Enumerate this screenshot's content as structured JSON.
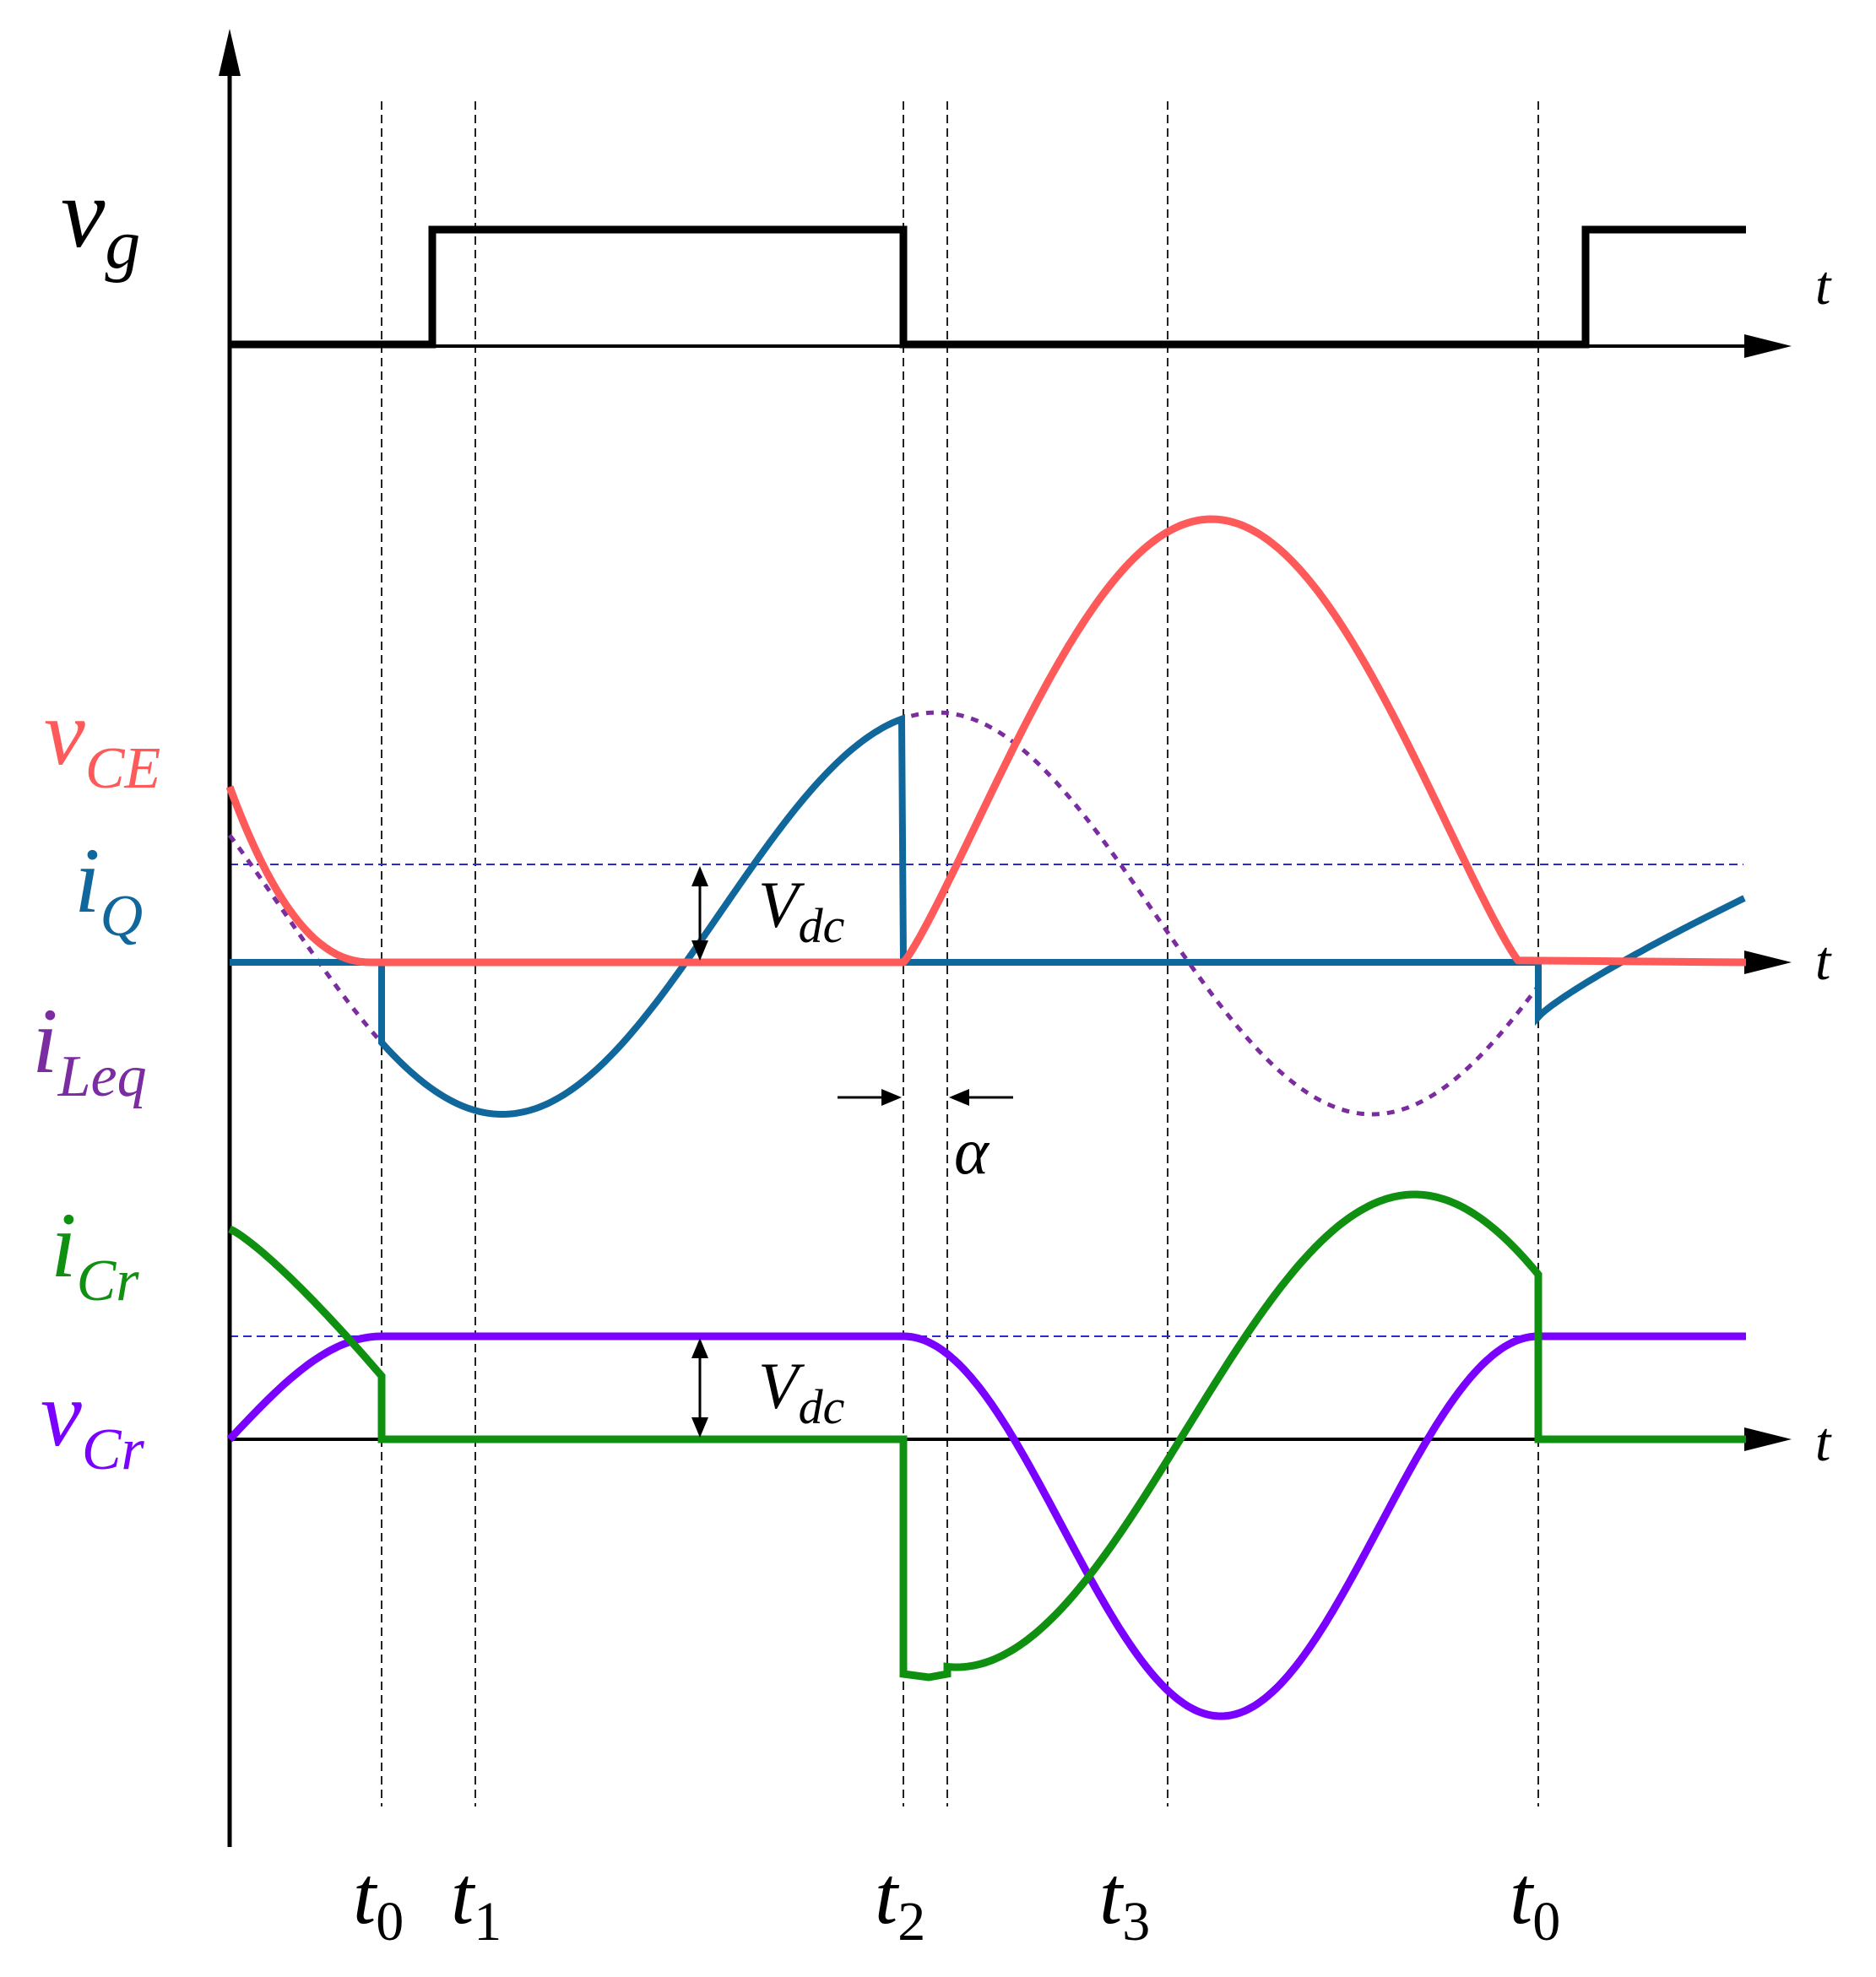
{
  "figure": {
    "colors": {
      "axis": "#000000",
      "vg": "#000000",
      "vCE": "#ff5a5a",
      "iQ": "#10679c",
      "iLeq": "#7a2ca0",
      "iCr": "#109010",
      "vCr": "#7a00ff",
      "vdc_ref": "#2a2ad0",
      "guides": "#222222"
    },
    "panels": {
      "gate": {
        "time_label": "t"
      },
      "switch": {
        "time_label": "t"
      },
      "resonant": {
        "time_label": "t"
      }
    },
    "signals": {
      "vg": {
        "main": "v",
        "sub": "g"
      },
      "vCE": {
        "main": "v",
        "sub": "CE"
      },
      "iQ": {
        "main": "i",
        "sub": "Q"
      },
      "iLeq": {
        "main": "i",
        "sub": "Leq"
      },
      "iCr": {
        "main": "i",
        "sub": "Cr"
      },
      "vCr": {
        "main": "v",
        "sub": "Cr"
      }
    },
    "annotations": {
      "vdc_switch": {
        "main": "V",
        "sub": "dc"
      },
      "vdc_resonant": {
        "main": "V",
        "sub": "dc"
      },
      "alpha": "α"
    },
    "time_instants": [
      {
        "main": "t",
        "sub": "0"
      },
      {
        "main": "t",
        "sub": "1"
      },
      {
        "main": "t",
        "sub": "2"
      },
      {
        "main": "t",
        "sub": "3"
      },
      {
        "main": "t",
        "sub": "0"
      }
    ]
  }
}
